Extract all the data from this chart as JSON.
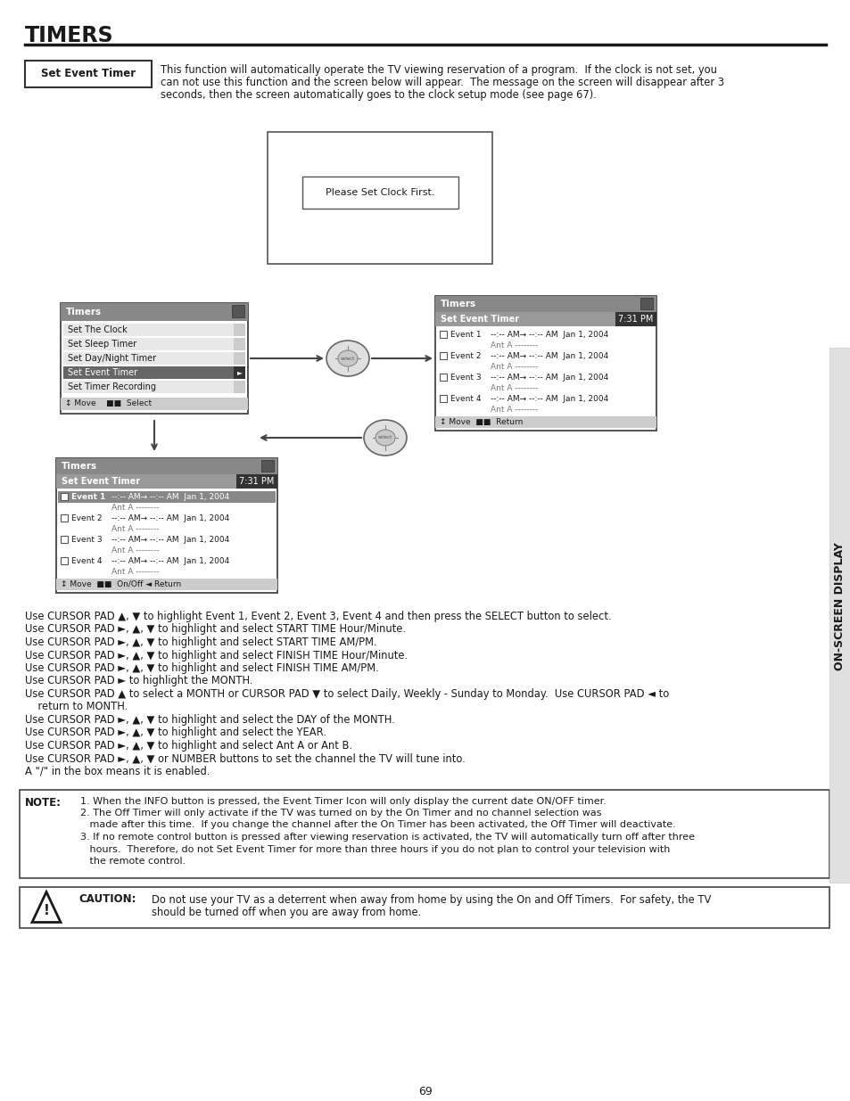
{
  "title": "TIMERS",
  "page_num": "69",
  "bg_color": "#ffffff",
  "sidebar_text": "ON-SCREEN DISPLAY",
  "set_event_timer_label": "Set Event Timer",
  "intro_text_lines": [
    "This function will automatically operate the TV viewing reservation of a program.  If the clock is not set, you",
    "can not use this function and the screen below will appear.  The message on the screen will disappear after 3",
    "seconds, then the screen automatically goes to the clock setup mode (see page 67)."
  ],
  "clock_box_text": "Please Set Clock First.",
  "menu_box1_title": "Timers",
  "menu_box1_items": [
    "Set The Clock",
    "Set Sleep Timer",
    "Set Day/Night Timer",
    "Set Event Timer",
    "Set Timer Recording"
  ],
  "menu_box1_selected": "Set Event Timer",
  "menu_box1_footer": "↕ Move    ■■  Select",
  "menu_box2_title": "Timers",
  "menu_box2_header": "Set Event Timer",
  "menu_box2_time": "7:31 PM",
  "menu_box2_footer": "↕ Move  ■■  Return",
  "menu_box3_title": "Timers",
  "menu_box3_header": "Set Event Timer",
  "menu_box3_time": "7:31 PM",
  "menu_box3_footer": "↕ Move  ■■  On/Off ◄ Return",
  "event_time": "--:-- AM→ --:-- AM  Jan 1, 2004",
  "event_ant": "Ant A --------",
  "instructions": [
    "Use CURSOR PAD ▲, ▼ to highlight Event 1, Event 2, Event 3, Event 4 and then press the SELECT button to select.",
    "Use CURSOR PAD ►, ▲, ▼ to highlight and select START TIME Hour/Minute.",
    "Use CURSOR PAD ►, ▲, ▼ to highlight and select START TIME AM/PM.",
    "Use CURSOR PAD ►, ▲, ▼ to highlight and select FINISH TIME Hour/Minute.",
    "Use CURSOR PAD ►, ▲, ▼ to highlight and select FINISH TIME AM/PM.",
    "Use CURSOR PAD ► to highlight the MONTH.",
    "Use CURSOR PAD ▲ to select a MONTH or CURSOR PAD ▼ to select Daily, Weekly - Sunday to Monday.  Use CURSOR PAD ◄ to",
    "    return to MONTH.",
    "Use CURSOR PAD ►, ▲, ▼ to highlight and select the DAY of the MONTH.",
    "Use CURSOR PAD ►, ▲, ▼ to highlight and select the YEAR.",
    "Use CURSOR PAD ►, ▲, ▼ to highlight and select Ant A or Ant B.",
    "Use CURSOR PAD ►, ▲, ▼ or NUMBER buttons to set the channel the TV will tune into.",
    "A \"/\" in the box means it is enabled."
  ],
  "note_title": "NOTE:",
  "note_items": [
    "1. When the INFO button is pressed, the Event Timer Icon will only display the current date ON/OFF timer.",
    "2. The Off Timer will only activate if the TV was turned on by the On Timer and no channel selection was",
    "   made after this time.  If you change the channel after the On Timer has been activated, the Off Timer will deactivate.",
    "3. If no remote control button is pressed after viewing reservation is activated, the TV will automatically turn off after three",
    "   hours.  Therefore, do not Set Event Timer for more than three hours if you do not plan to control your television with",
    "   the remote control."
  ],
  "caution_title": "CAUTION:",
  "caution_text_lines": [
    "Do not use your TV as a deterrent when away from home by using the On and Off Timers.  For safety, the TV",
    "should be turned off when you are away from home."
  ]
}
